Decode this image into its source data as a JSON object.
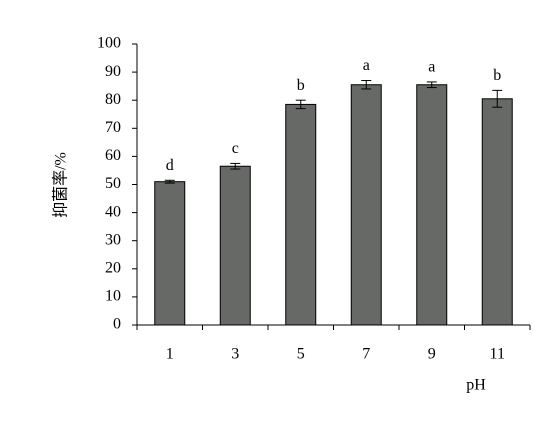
{
  "chart_data": {
    "type": "bar",
    "ylabel": "抑菌率/%",
    "xlabel": "pH",
    "categories": [
      "1",
      "3",
      "5",
      "7",
      "9",
      "11"
    ],
    "values": [
      51,
      56.5,
      78.5,
      85.5,
      85.5,
      80.5
    ],
    "errors": [
      0.5,
      1,
      1.5,
      1.5,
      1,
      3
    ],
    "annotations": [
      "d",
      "c",
      "b",
      "a",
      "a",
      "b"
    ],
    "color": "#666966",
    "ylim": [
      0,
      100
    ],
    "yticks": [
      0,
      10,
      20,
      30,
      40,
      50,
      60,
      70,
      80,
      90,
      100
    ]
  }
}
